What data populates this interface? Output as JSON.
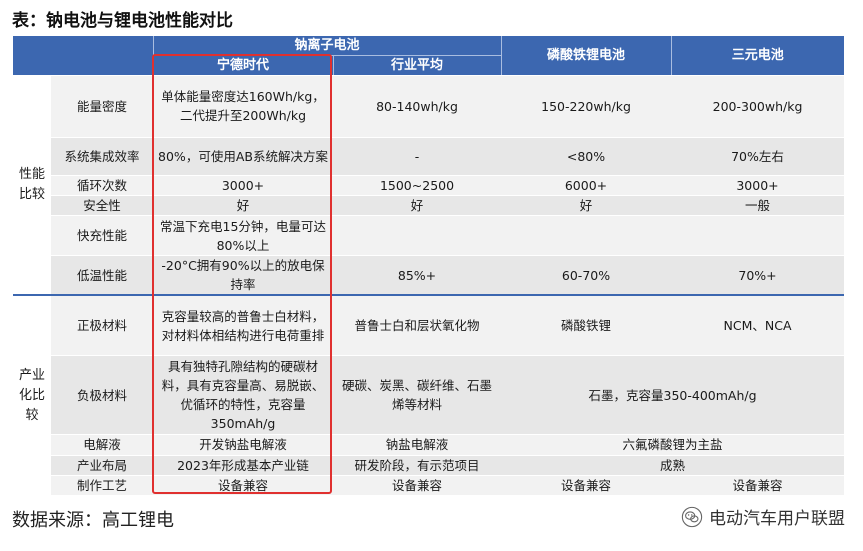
{
  "title": "表：钠电池与锂电池性能对比",
  "header": {
    "na_group": "钠离子电池",
    "catl": "宁德时代",
    "avg": "行业平均",
    "lfp": "磷酸铁锂电池",
    "ncm": "三元电池"
  },
  "categories": {
    "performance": "性能比较",
    "industrial": "产业化比较"
  },
  "rows": [
    {
      "item": "能量密度",
      "catl": "单体能量密度达160Wh/kg，二代提升至200Wh/kg",
      "avg": "80-140wh/kg",
      "lfp": "150-220wh/kg",
      "ncm": "200-300wh/kg"
    },
    {
      "item": "系统集成效率",
      "catl": "80%，可使用AB系统解决方案",
      "avg": "-",
      "lfp": "<80%",
      "ncm": "70%左右"
    },
    {
      "item": "循环次数",
      "catl": "3000+",
      "avg": "1500~2500",
      "lfp": "6000+",
      "ncm": "3000+"
    },
    {
      "item": "安全性",
      "catl": "好",
      "avg": "好",
      "lfp": "好",
      "ncm": "一般"
    },
    {
      "item": "快充性能",
      "catl": "常温下充电15分钟，电量可达80%以上",
      "avg": "",
      "lfp": "",
      "ncm": ""
    },
    {
      "item": "低温性能",
      "catl": "-20°C拥有90%以上的放电保持率",
      "avg": "85%+",
      "lfp": "60-70%",
      "ncm": "70%+"
    },
    {
      "item": "正极材料",
      "catl": "克容量较高的普鲁士白材料，对材料体相结构进行电荷重排",
      "avg": "普鲁士白和层状氧化物",
      "lfp": "磷酸铁锂",
      "ncm": "NCM、NCA"
    },
    {
      "item": "负极材料",
      "catl": "具有独特孔隙结构的硬碳材料，具有克容量高、易脱嵌、优循环的特性，克容量350mAh/g",
      "avg": "硬碳、炭黑、碳纤维、石墨烯等材料",
      "li_merged": "石墨，克容量350-400mAh/g"
    },
    {
      "item": "电解液",
      "catl": "开发钠盐电解液",
      "avg": "钠盐电解液",
      "li_merged": "六氟磷酸锂为主盐"
    },
    {
      "item": "产业布局",
      "catl": "2023年形成基本产业链",
      "avg": "研发阶段，有示范项目",
      "li_merged": "成熟"
    },
    {
      "item": "制作工艺",
      "catl": "设备兼容",
      "avg": "设备兼容",
      "lfp": "设备兼容",
      "ncm": "设备兼容"
    }
  ],
  "footer": {
    "source": "数据来源：高工锂电",
    "brand": "电动汽车用户联盟"
  },
  "colors": {
    "header_bg": "#3c67b0",
    "highlight_border": "#e0302f"
  }
}
